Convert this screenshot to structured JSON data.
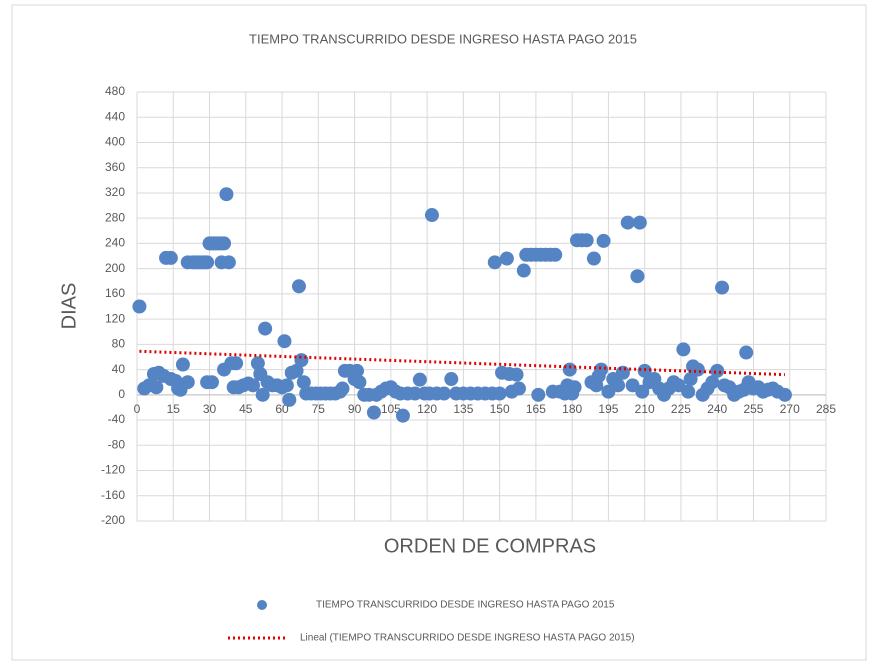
{
  "chart_data": {
    "type": "scatter",
    "title": "TIEMPO TRANSCURRIDO DESDE INGRESO HASTA PAGO 2015",
    "x_label": "ORDEN DE COMPRAS",
    "y_label": "DIAS",
    "xlim": [
      0,
      285
    ],
    "ylim": [
      -200,
      480
    ],
    "xticks": [
      0,
      15,
      30,
      45,
      60,
      75,
      90,
      105,
      120,
      135,
      150,
      165,
      180,
      195,
      210,
      225,
      240,
      255,
      270,
      285
    ],
    "yticks": [
      -200,
      -160,
      -120,
      -80,
      -40,
      0,
      40,
      80,
      120,
      160,
      200,
      240,
      280,
      320,
      360,
      400,
      440,
      480
    ],
    "grid": true,
    "legend": "bottom",
    "series": [
      {
        "name": "TIEMPO TRANSCURRIDO DESDE INGRESO HASTA PAGO 2015",
        "color": "#5584c4",
        "x": [
          1,
          3,
          5,
          7,
          8,
          9,
          11,
          12,
          14,
          14,
          16,
          17,
          18,
          19,
          21,
          21,
          23,
          24,
          25,
          26,
          27,
          28,
          29,
          29,
          30,
          31,
          32,
          33,
          34,
          35,
          36,
          31,
          35,
          37,
          38,
          36,
          39,
          41,
          40,
          42,
          44,
          46,
          48,
          50,
          51,
          52,
          53,
          54,
          56,
          58,
          60,
          61,
          62,
          63,
          64,
          66,
          67,
          68,
          69,
          70,
          72,
          74,
          76,
          78,
          80,
          82,
          84,
          85,
          86,
          88,
          90,
          91,
          92,
          94,
          96,
          98,
          99,
          101,
          103,
          105,
          107,
          110,
          109,
          112,
          115,
          117,
          119,
          121,
          122,
          124,
          127,
          130,
          132,
          135,
          138,
          141,
          144,
          147,
          148,
          150,
          151,
          153,
          154,
          155,
          157,
          158,
          160,
          161,
          163,
          165,
          166,
          167,
          169,
          171,
          173,
          172,
          175,
          177,
          178,
          179,
          180,
          181,
          182,
          184,
          186,
          188,
          189,
          190,
          191,
          192,
          193,
          195,
          197,
          199,
          201,
          203,
          205,
          207,
          208,
          209,
          210,
          212,
          214,
          216,
          218,
          220,
          222,
          224,
          226,
          228,
          229,
          230,
          232,
          234,
          236,
          238,
          240,
          242,
          243,
          245,
          247,
          249,
          251,
          252,
          253,
          255,
          257,
          259,
          261,
          263,
          265,
          268
        ],
        "values": [
          140,
          10,
          15,
          33,
          12,
          35,
          30,
          217,
          217,
          25,
          22,
          10,
          8,
          48,
          20,
          210,
          210,
          210,
          210,
          210,
          210,
          210,
          210,
          20,
          240,
          240,
          240,
          240,
          240,
          240,
          240,
          20,
          210,
          318,
          210,
          40,
          50,
          50,
          12,
          12,
          15,
          18,
          15,
          50,
          33,
          0,
          105,
          20,
          15,
          15,
          12,
          85,
          15,
          -8,
          35,
          38,
          172,
          55,
          20,
          2,
          2,
          2,
          2,
          2,
          2,
          2,
          5,
          10,
          38,
          38,
          25,
          38,
          20,
          0,
          0,
          -28,
          0,
          5,
          10,
          12,
          5,
          -33,
          2,
          2,
          2,
          24,
          2,
          2,
          285,
          2,
          2,
          25,
          2,
          2,
          2,
          2,
          2,
          2,
          210,
          2,
          35,
          216,
          33,
          5,
          32,
          10,
          197,
          222,
          222,
          222,
          0,
          222,
          222,
          222,
          222,
          5,
          5,
          2,
          15,
          40,
          2,
          12,
          245,
          245,
          245,
          20,
          216,
          15,
          30,
          40,
          244,
          5,
          25,
          15,
          35,
          273,
          15,
          188,
          273,
          5,
          38,
          20,
          25,
          10,
          0,
          10,
          20,
          15,
          72,
          5,
          25,
          45,
          40,
          0,
          10,
          20,
          38,
          170,
          15,
          12,
          0,
          5,
          8,
          67,
          20,
          10,
          12,
          5,
          8,
          10,
          5,
          0
        ]
      },
      {
        "name": "Lineal (TIEMPO TRANSCURRIDO DESDE INGRESO HASTA PAGO 2015)",
        "color": "#e00000",
        "trendline": true,
        "x": [
          1,
          268
        ],
        "values": [
          69,
          32
        ]
      }
    ]
  }
}
